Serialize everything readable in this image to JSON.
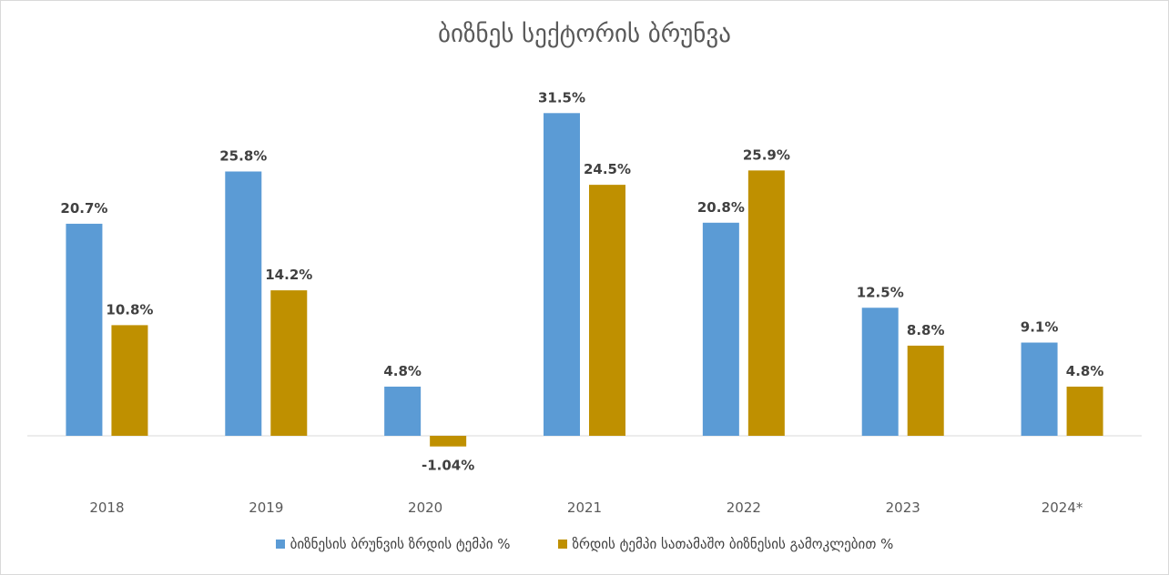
{
  "chart_data": {
    "type": "bar",
    "title": "ბიზნეს სექტორის ბრუნვა",
    "categories": [
      "2018",
      "2019",
      "2020",
      "2021",
      "2022",
      "2023",
      "2024*"
    ],
    "series": [
      {
        "name": "ბიზნესის ბრუნვის ზრდის ტემპი %",
        "color": "#5b9bd5",
        "values": [
          20.7,
          25.8,
          4.8,
          31.5,
          20.8,
          12.5,
          9.1
        ],
        "labels": [
          "20.7%",
          "25.8%",
          "4.8%",
          "31.5%",
          "20.8%",
          "12.5%",
          "9.1%"
        ]
      },
      {
        "name": "ზრდის ტემპი სათამაშო ბიზნესის გამოკლებით %",
        "color": "#bf9000",
        "values": [
          10.8,
          14.2,
          -1.04,
          24.5,
          25.9,
          8.8,
          4.8
        ],
        "labels": [
          "10.8%",
          "14.2%",
          "-1.04%",
          "24.5%",
          "25.9%",
          "8.8%",
          "4.8%"
        ]
      }
    ],
    "xlabel": "",
    "ylabel": "",
    "grid": false,
    "legend": "bottom"
  }
}
